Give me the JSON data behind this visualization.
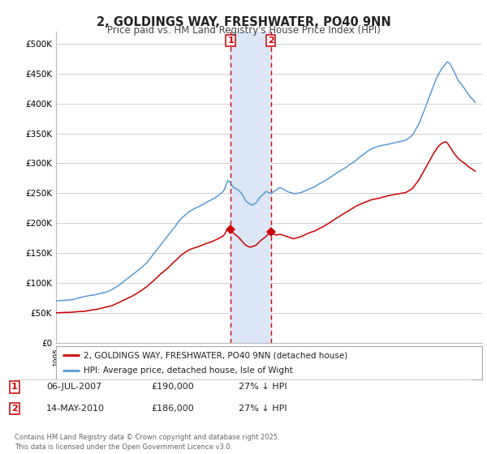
{
  "title": "2, GOLDINGS WAY, FRESHWATER, PO40 9NN",
  "subtitle": "Price paid vs. HM Land Registry's House Price Index (HPI)",
  "xlim_start": 1995.0,
  "xlim_end": 2025.5,
  "ylim_min": 0,
  "ylim_max": 520000,
  "yticks": [
    0,
    50000,
    100000,
    150000,
    200000,
    250000,
    300000,
    350000,
    400000,
    450000,
    500000
  ],
  "ytick_labels": [
    "£0",
    "£50K",
    "£100K",
    "£150K",
    "£200K",
    "£250K",
    "£300K",
    "£350K",
    "£400K",
    "£450K",
    "£500K"
  ],
  "transaction1_date": 2007.51,
  "transaction1_price": 190000,
  "transaction2_date": 2010.37,
  "transaction2_price": 186000,
  "property_color": "#cc0000",
  "hpi_color": "#5b9bd5",
  "shaded_color": "#dce6f5",
  "vline_color": "#cc0000",
  "legend_property_label": "2, GOLDINGS WAY, FRESHWATER, PO40 9NN (detached house)",
  "legend_hpi_label": "HPI: Average price, detached house, Isle of Wight",
  "footer": "Contains HM Land Registry data © Crown copyright and database right 2025.\nThis data is licensed under the Open Government Licence v3.0.",
  "background_color": "#ffffff",
  "grid_color": "#d0d0d0",
  "hpi_key_points": [
    [
      1995.0,
      70000
    ],
    [
      1995.5,
      71000
    ],
    [
      1996.0,
      72000
    ],
    [
      1996.5,
      73500
    ],
    [
      1997.0,
      76000
    ],
    [
      1997.5,
      79000
    ],
    [
      1998.0,
      82000
    ],
    [
      1998.5,
      85000
    ],
    [
      1999.0,
      89000
    ],
    [
      1999.5,
      96000
    ],
    [
      2000.0,
      104000
    ],
    [
      2000.5,
      113000
    ],
    [
      2001.0,
      122000
    ],
    [
      2001.5,
      133000
    ],
    [
      2002.0,
      148000
    ],
    [
      2002.5,
      163000
    ],
    [
      2003.0,
      178000
    ],
    [
      2003.5,
      193000
    ],
    [
      2004.0,
      208000
    ],
    [
      2004.5,
      218000
    ],
    [
      2005.0,
      225000
    ],
    [
      2005.5,
      230000
    ],
    [
      2006.0,
      237000
    ],
    [
      2006.5,
      243000
    ],
    [
      2007.0,
      252000
    ],
    [
      2007.3,
      270000
    ],
    [
      2007.5,
      265000
    ],
    [
      2007.7,
      258000
    ],
    [
      2008.0,
      255000
    ],
    [
      2008.3,
      248000
    ],
    [
      2008.6,
      235000
    ],
    [
      2008.9,
      230000
    ],
    [
      2009.0,
      228000
    ],
    [
      2009.3,
      232000
    ],
    [
      2009.6,
      242000
    ],
    [
      2009.9,
      248000
    ],
    [
      2010.0,
      252000
    ],
    [
      2010.3,
      248000
    ],
    [
      2010.5,
      250000
    ],
    [
      2010.8,
      255000
    ],
    [
      2011.0,
      258000
    ],
    [
      2011.3,
      256000
    ],
    [
      2011.6,
      252000
    ],
    [
      2011.9,
      250000
    ],
    [
      2012.0,
      248000
    ],
    [
      2012.5,
      250000
    ],
    [
      2013.0,
      255000
    ],
    [
      2013.5,
      260000
    ],
    [
      2014.0,
      268000
    ],
    [
      2014.5,
      275000
    ],
    [
      2015.0,
      283000
    ],
    [
      2015.5,
      290000
    ],
    [
      2016.0,
      298000
    ],
    [
      2016.5,
      306000
    ],
    [
      2017.0,
      315000
    ],
    [
      2017.5,
      323000
    ],
    [
      2018.0,
      328000
    ],
    [
      2018.5,
      332000
    ],
    [
      2019.0,
      335000
    ],
    [
      2019.5,
      338000
    ],
    [
      2020.0,
      340000
    ],
    [
      2020.5,
      348000
    ],
    [
      2021.0,
      368000
    ],
    [
      2021.5,
      398000
    ],
    [
      2022.0,
      430000
    ],
    [
      2022.3,
      448000
    ],
    [
      2022.6,
      460000
    ],
    [
      2022.9,
      468000
    ],
    [
      2023.0,
      472000
    ],
    [
      2023.2,
      468000
    ],
    [
      2023.5,
      455000
    ],
    [
      2023.8,
      440000
    ],
    [
      2024.0,
      435000
    ],
    [
      2024.3,
      425000
    ],
    [
      2024.6,
      415000
    ],
    [
      2024.9,
      408000
    ],
    [
      2025.0,
      405000
    ]
  ],
  "prop_key_points": [
    [
      1995.0,
      50000
    ],
    [
      1995.5,
      50500
    ],
    [
      1996.0,
      51000
    ],
    [
      1996.5,
      52000
    ],
    [
      1997.0,
      53000
    ],
    [
      1997.5,
      55000
    ],
    [
      1998.0,
      57000
    ],
    [
      1998.5,
      60000
    ],
    [
      1999.0,
      63000
    ],
    [
      1999.5,
      68000
    ],
    [
      2000.0,
      74000
    ],
    [
      2000.5,
      80000
    ],
    [
      2001.0,
      87000
    ],
    [
      2001.5,
      95000
    ],
    [
      2002.0,
      105000
    ],
    [
      2002.5,
      116000
    ],
    [
      2003.0,
      126000
    ],
    [
      2003.5,
      137000
    ],
    [
      2004.0,
      148000
    ],
    [
      2004.5,
      155000
    ],
    [
      2005.0,
      160000
    ],
    [
      2005.5,
      164000
    ],
    [
      2006.0,
      168000
    ],
    [
      2006.5,
      173000
    ],
    [
      2007.0,
      179000
    ],
    [
      2007.3,
      191000
    ],
    [
      2007.51,
      190000
    ],
    [
      2007.7,
      183000
    ],
    [
      2008.0,
      178000
    ],
    [
      2008.3,
      170000
    ],
    [
      2008.6,
      163000
    ],
    [
      2008.9,
      160000
    ],
    [
      2009.0,
      161000
    ],
    [
      2009.3,
      163000
    ],
    [
      2009.6,
      170000
    ],
    [
      2009.9,
      175000
    ],
    [
      2010.0,
      177000
    ],
    [
      2010.37,
      186000
    ],
    [
      2010.5,
      183000
    ],
    [
      2010.8,
      180000
    ],
    [
      2011.0,
      182000
    ],
    [
      2011.3,
      180000
    ],
    [
      2011.6,
      177000
    ],
    [
      2011.9,
      175000
    ],
    [
      2012.0,
      174000
    ],
    [
      2012.5,
      177000
    ],
    [
      2013.0,
      182000
    ],
    [
      2013.5,
      186000
    ],
    [
      2014.0,
      192000
    ],
    [
      2014.5,
      198000
    ],
    [
      2015.0,
      206000
    ],
    [
      2015.5,
      213000
    ],
    [
      2016.0,
      220000
    ],
    [
      2016.5,
      227000
    ],
    [
      2017.0,
      232000
    ],
    [
      2017.5,
      237000
    ],
    [
      2018.0,
      240000
    ],
    [
      2018.5,
      243000
    ],
    [
      2019.0,
      246000
    ],
    [
      2019.5,
      248000
    ],
    [
      2020.0,
      250000
    ],
    [
      2020.5,
      257000
    ],
    [
      2021.0,
      272000
    ],
    [
      2021.5,
      293000
    ],
    [
      2022.0,
      314000
    ],
    [
      2022.3,
      325000
    ],
    [
      2022.6,
      332000
    ],
    [
      2022.9,
      335000
    ],
    [
      2023.0,
      333000
    ],
    [
      2023.2,
      326000
    ],
    [
      2023.5,
      315000
    ],
    [
      2023.8,
      306000
    ],
    [
      2024.0,
      302000
    ],
    [
      2024.3,
      297000
    ],
    [
      2024.6,
      291000
    ],
    [
      2024.9,
      287000
    ],
    [
      2025.0,
      285000
    ]
  ]
}
